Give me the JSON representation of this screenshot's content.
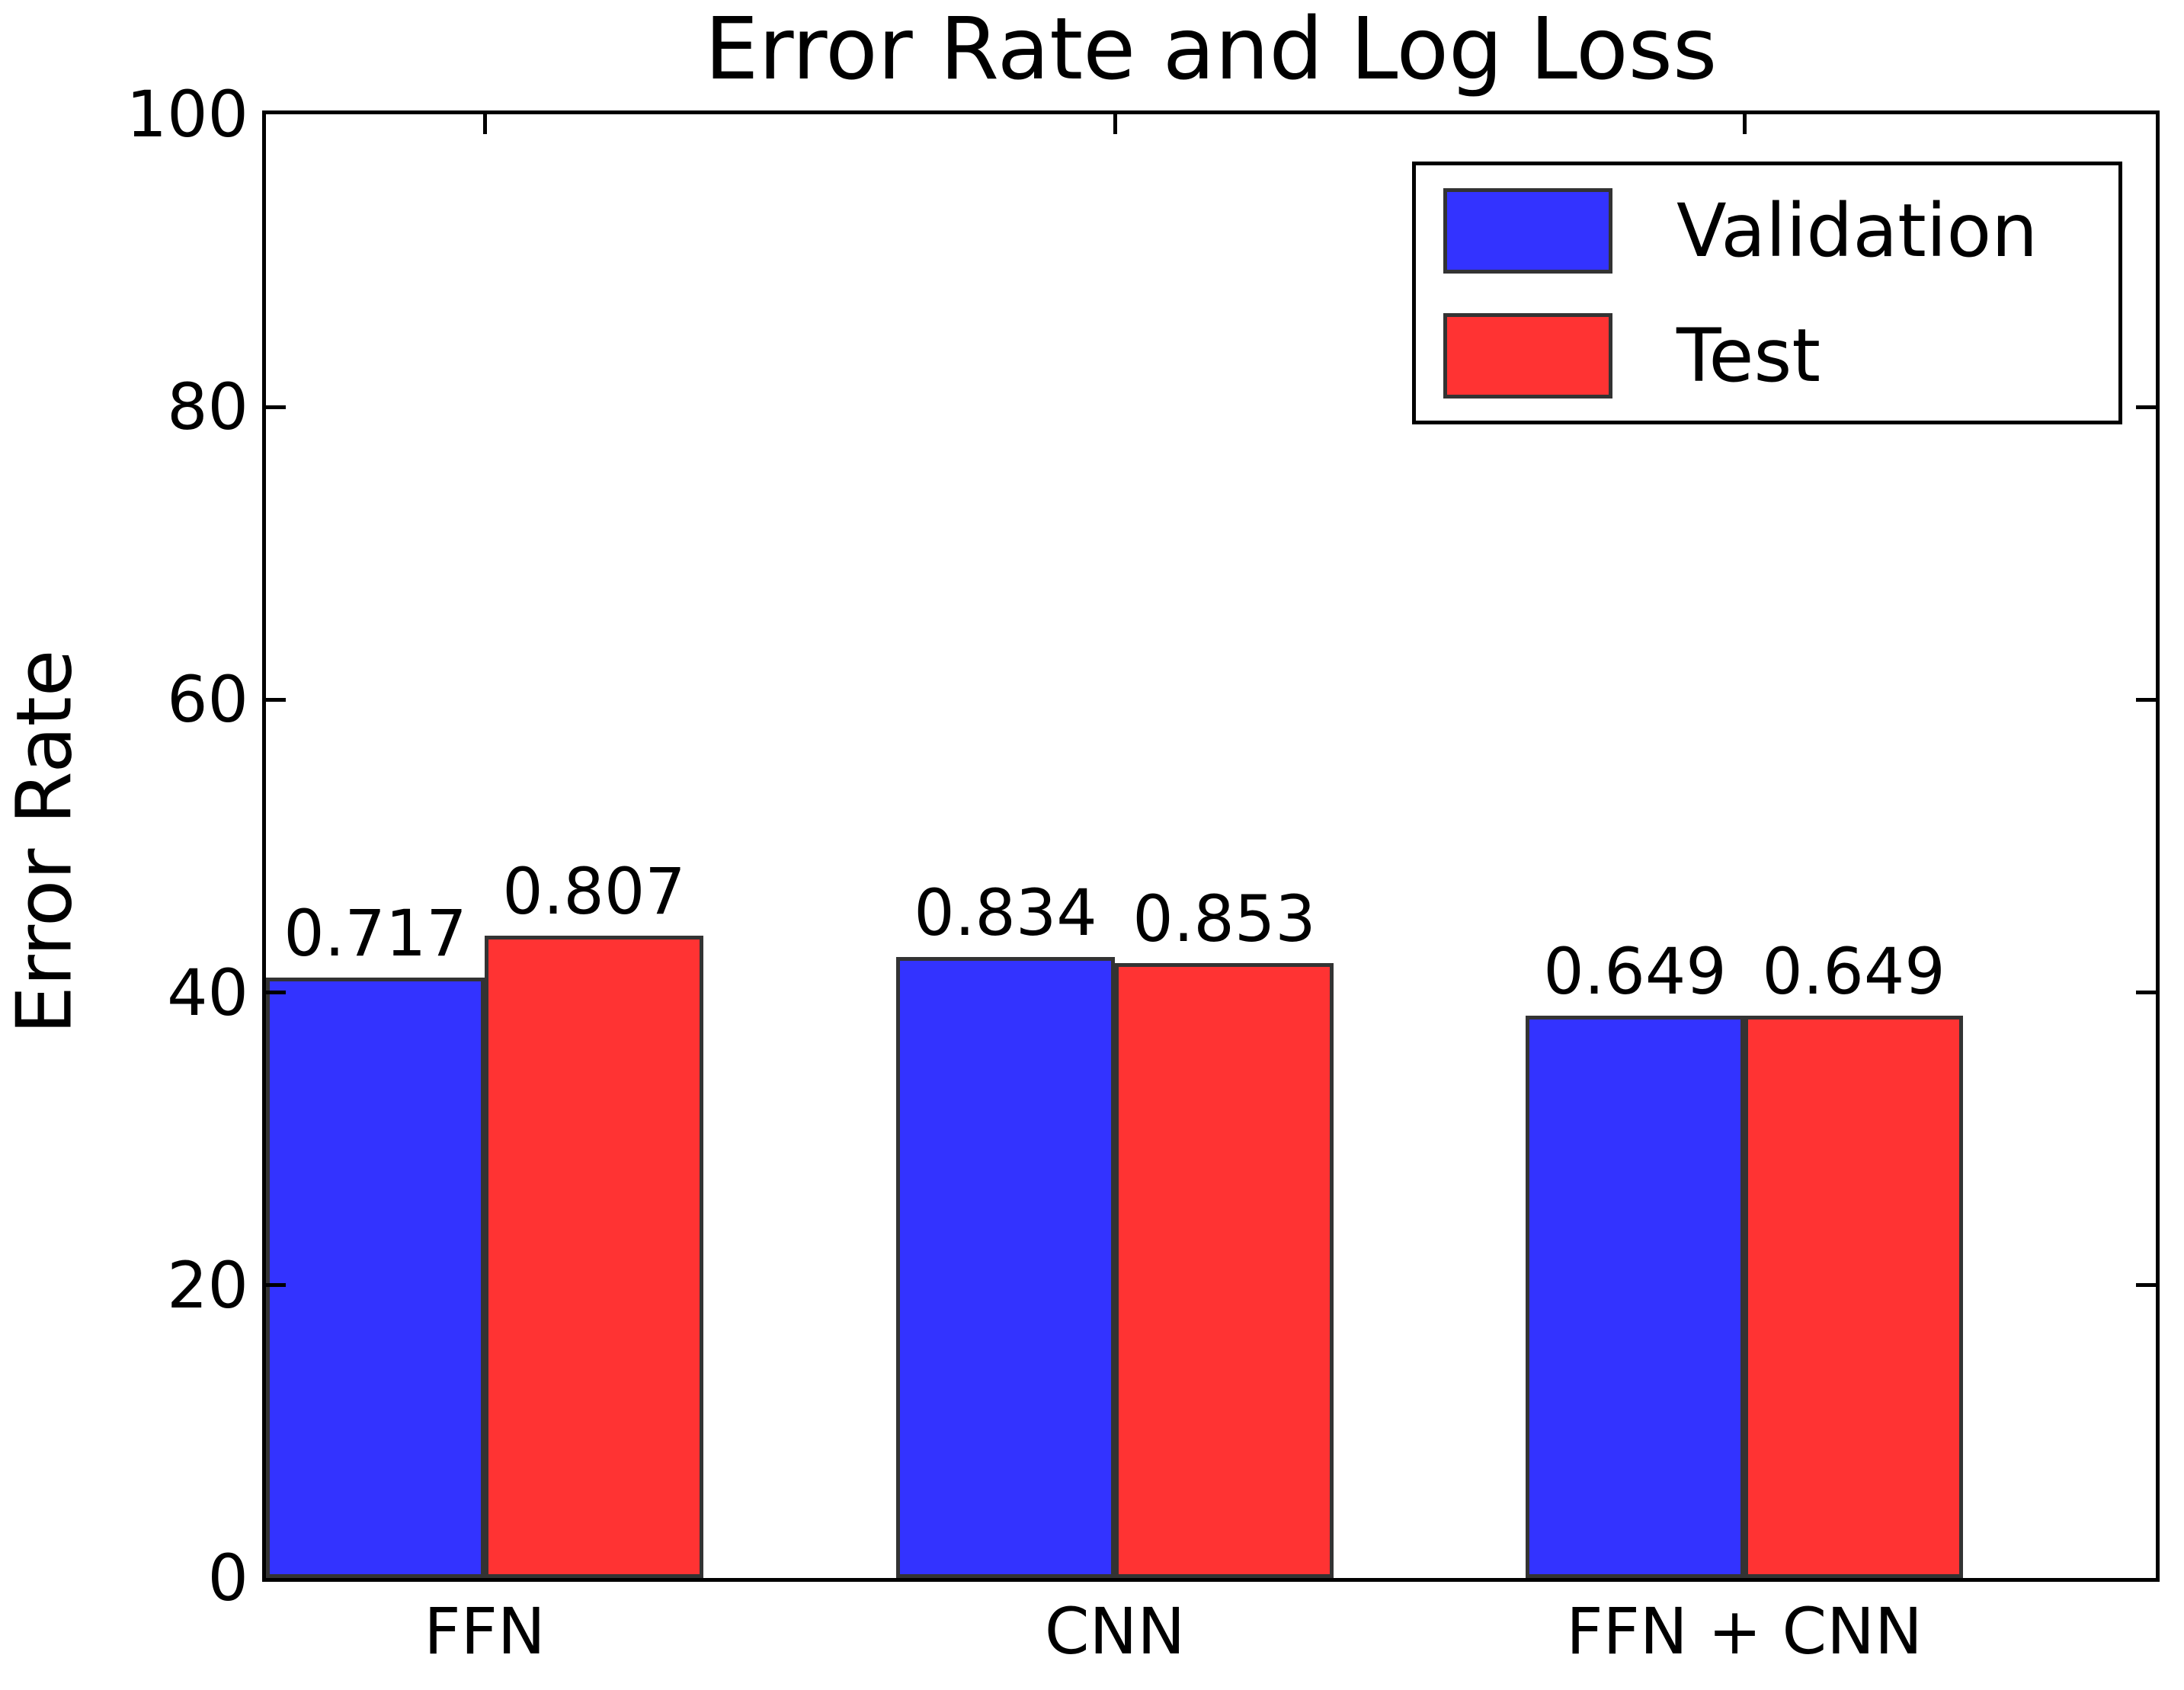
{
  "figure": {
    "background": "#ffffff"
  },
  "chart_data": {
    "type": "bar",
    "title": "Error Rate and Log Loss",
    "ylabel": "Error Rate",
    "xlabel": "",
    "categories": [
      "FFN",
      "CNN",
      "FFN + CNN"
    ],
    "series": [
      {
        "name": "Validation",
        "color": "#3333FF",
        "values": [
          41.0,
          42.4,
          38.4
        ],
        "bar_labels": [
          "0.717",
          "0.834",
          "0.649"
        ]
      },
      {
        "name": "Test",
        "color": "#FF3333",
        "values": [
          43.9,
          42.0,
          38.4
        ],
        "bar_labels": [
          "0.807",
          "0.853",
          "0.649"
        ]
      }
    ],
    "ylim": [
      0,
      100
    ],
    "yticks": [
      0,
      20,
      40,
      60,
      80,
      100
    ],
    "bar_edge_color": "#333333",
    "axis_color": "#000000",
    "legend": {
      "position": "upper right",
      "entries": [
        "Validation",
        "Test"
      ]
    },
    "grid": false
  }
}
